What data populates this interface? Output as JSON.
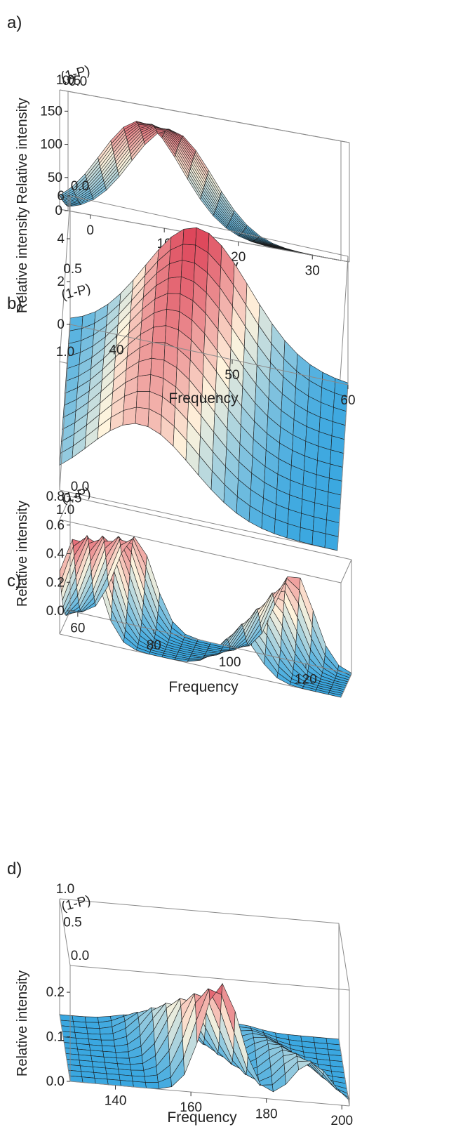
{
  "figure": {
    "chart_data": [
      {
        "type": "surface",
        "panel_label": "a)",
        "xlabel": "Frequency",
        "ylabel": "(1-P)",
        "zlabel": "Relative intensity",
        "xlim": [
          -3,
          35
        ],
        "ylim": [
          0,
          1
        ],
        "zlim": [
          0,
          180
        ],
        "xticks": [
          0,
          10,
          20,
          30
        ],
        "yticks": [
          0.0,
          0.5,
          1.0
        ],
        "zticks": [
          0,
          50,
          100,
          150
        ],
        "peaks": [
          {
            "center_at_P0": 11,
            "center_at_P1": 8,
            "width": 5.5,
            "height_at_P0": 150,
            "height_at_P1": 155
          }
        ],
        "x_grid_count": 22,
        "y_grid_count": 12
      },
      {
        "type": "surface",
        "panel_label": "b)",
        "xlabel": "Frequency",
        "ylabel": "(1-P)",
        "zlabel": "Relative intensity",
        "xlim": [
          36,
          60
        ],
        "ylim": [
          0,
          1
        ],
        "zlim": [
          0,
          6
        ],
        "xticks": [
          40,
          50,
          60
        ],
        "yticks": [
          0.0,
          0.5,
          1.0
        ],
        "zticks": [
          0,
          2,
          4,
          6
        ],
        "peaks": [
          {
            "center_at_P0": 47,
            "center_at_P1": 43,
            "width": 4.5,
            "height_at_P0": 5.8,
            "height_at_P1": 3.9
          }
        ],
        "x_grid_count": 22,
        "y_grid_count": 12
      },
      {
        "type": "surface",
        "panel_label": "c)",
        "xlabel": "Frequency",
        "ylabel": "(1-P)",
        "zlabel": "Relative intensity",
        "xlim": [
          58,
          132
        ],
        "ylim": [
          0,
          1
        ],
        "zlim": [
          0,
          0.8
        ],
        "xticks": [
          60,
          80,
          100,
          120
        ],
        "yticks": [
          0.0,
          0.5,
          1.0
        ],
        "zticks": [
          0.0,
          0.2,
          0.4,
          0.6,
          0.8
        ],
        "peaks": [
          {
            "center_at_P0": 75,
            "center_at_P1": 63,
            "width": 5,
            "height_at_P0": 0.62,
            "height_at_P1": 0.72
          },
          {
            "center_at_P0": 117,
            "center_at_P1": 105,
            "width": 5,
            "height_at_P0": 0.62,
            "height_at_P1": 0.28
          }
        ],
        "x_grid_count": 22,
        "y_grid_count": 12
      },
      {
        "type": "surface",
        "panel_label": "d)",
        "xlabel": "Frequency",
        "ylabel": "(1-P)",
        "zlabel": "Relative intensity",
        "xlim": [
          128,
          202
        ],
        "ylim": [
          0,
          1
        ],
        "zlim": [
          0,
          0.26
        ],
        "xticks": [
          140,
          160,
          180,
          200
        ],
        "yticks": [
          0.0,
          0.5,
          1.0
        ],
        "zticks": [
          0.0,
          0.1,
          0.2
        ],
        "peaks": [
          {
            "center_at_P0": 168,
            "center_at_P1": 148,
            "width": 5,
            "height_at_P0": 0.25,
            "height_at_P1": 0.015
          },
          {
            "center_at_P0": 192,
            "center_at_P1": 175,
            "width": 5,
            "height_at_P0": 0.09,
            "height_at_P1": 0.015
          }
        ],
        "x_grid_count": 22,
        "y_grid_count": 12
      }
    ],
    "colors": {
      "high": "#d9304a",
      "mid": "#fff4dd",
      "low": "#3aa7e0",
      "mesh": "#1b1b1b",
      "box": "#8a8a8a"
    }
  }
}
